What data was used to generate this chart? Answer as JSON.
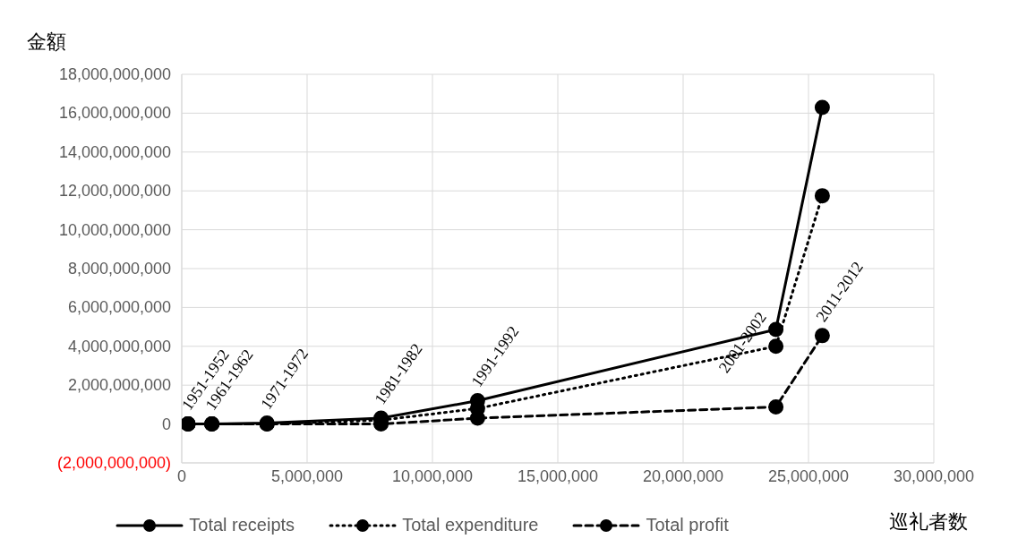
{
  "chart_data": {
    "type": "line",
    "ylabel": "金額",
    "xlabel": "巡礼者数",
    "x": [
      250000,
      1200000,
      3400000,
      7950000,
      11800000,
      23700000,
      25550000
    ],
    "series": [
      {
        "name": "Total receipts",
        "color": "#000000",
        "line_style": "solid",
        "values": [
          0,
          0,
          50000000,
          300000000,
          1200000000,
          4870000000,
          16300000000
        ]
      },
      {
        "name": "Total expenditure",
        "color": "#000000",
        "line_style": "dotted",
        "values": [
          0,
          0,
          0,
          200000000,
          800000000,
          4000000000,
          11750000000
        ]
      },
      {
        "name": "Total profit",
        "color": "#000000",
        "line_style": "dashed",
        "values": [
          0,
          0,
          0,
          0,
          300000000,
          880000000,
          4550000000
        ]
      }
    ],
    "annotations": [
      {
        "text": "1951-1952",
        "x": 250000,
        "y": 0
      },
      {
        "text": "1961-1962",
        "x": 1200000,
        "y": 0
      },
      {
        "text": "1971-1972",
        "x": 3400000,
        "y": 50000000
      },
      {
        "text": "1981-1982",
        "x": 7950000,
        "y": 300000000
      },
      {
        "text": "1991-1992",
        "x": 11800000,
        "y": 1200000000
      },
      {
        "text": "2001-2002",
        "x": 23700000,
        "y": 4870000000
      },
      {
        "text": "2011-2012",
        "x": 25550000,
        "y": 4550000000
      }
    ],
    "xlim": [
      0,
      30000000
    ],
    "xticks": [
      0,
      {
        "value": 5000000,
        "label": "5,000,000"
      },
      {
        "value": 10000000,
        "label": "10,000,000"
      },
      {
        "value": 15000000,
        "label": "15,000,000"
      },
      {
        "value": 20000000,
        "label": "20,000,000"
      },
      {
        "value": 25000000,
        "label": "25,000,000"
      },
      {
        "value": 30000000,
        "label": "30,000,000"
      }
    ],
    "ylim": [
      -2000000000,
      18000000000
    ],
    "yticks": [
      {
        "value": -2000000000,
        "label": "(2,000,000,000)"
      },
      0,
      {
        "value": 2000000000,
        "label": "2,000,000,000"
      },
      {
        "value": 4000000000,
        "label": "4,000,000,000"
      },
      {
        "value": 6000000000,
        "label": "6,000,000,000"
      },
      {
        "value": 8000000000,
        "label": "8,000,000,000"
      },
      {
        "value": 10000000000,
        "label": "10,000,000,000"
      },
      {
        "value": 12000000000,
        "label": "12,000,000,000"
      },
      {
        "value": 14000000000,
        "label": "14,000,000,000"
      },
      {
        "value": 16000000000,
        "label": "16,000,000,000"
      },
      {
        "value": 18000000000,
        "label": "18,000,000,000"
      }
    ],
    "grid": true,
    "legend": "bottom",
    "marker": "circle"
  }
}
